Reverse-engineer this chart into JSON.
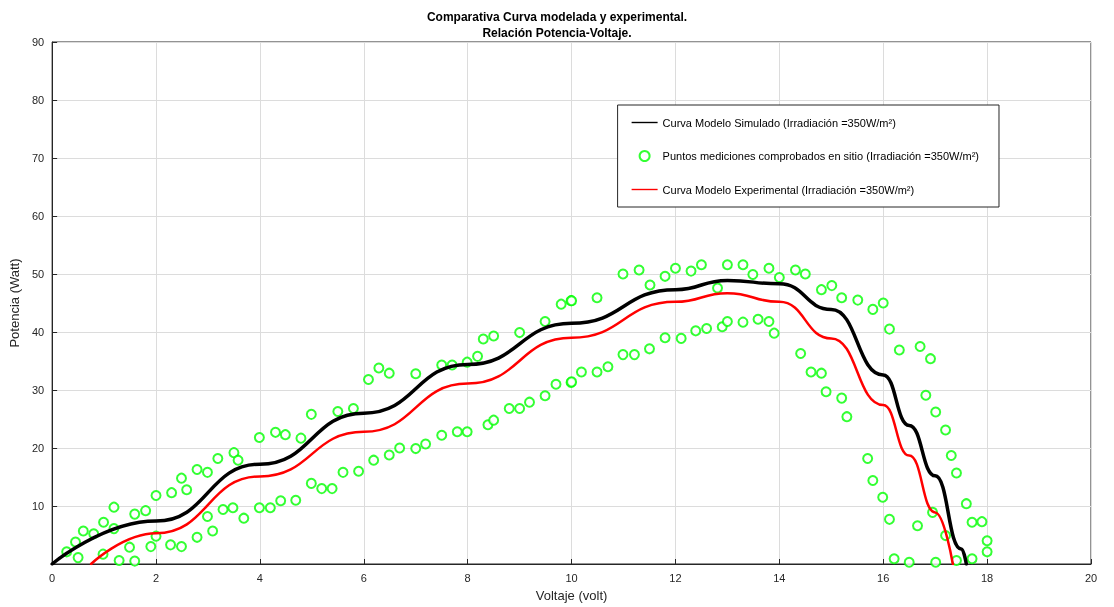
{
  "chart_data": {
    "type": "line",
    "title": "Comparativa Curva modelada y experimental.\nRelación Potencia-Voltaje.",
    "xlabel": "Voltaje (volt)",
    "ylabel": "Potencia (Watt)",
    "xlim": [
      0,
      20
    ],
    "xticks": [
      0,
      2,
      4,
      6,
      8,
      10,
      12,
      14,
      16,
      18,
      20
    ],
    "ylim": [
      0,
      90
    ],
    "yticks": [
      {
        "value": 0,
        "label": null
      },
      10,
      20,
      30,
      40,
      50,
      60,
      70,
      80,
      90
    ],
    "grid": true,
    "legend": "top right",
    "series": [
      {
        "name": "Curva Modelo Simulado (Irradiación =350W/m²)",
        "marker": "none",
        "line_style": "solid",
        "color": "#000000",
        "x": [
          0,
          2,
          4,
          6,
          8,
          10,
          12,
          13,
          14,
          15,
          16,
          16.5,
          17,
          17.5,
          17.6
        ],
        "values": [
          0,
          7.4,
          17.2,
          26,
          34.4,
          41.5,
          47.3,
          48.9,
          48.3,
          43.9,
          32.6,
          23.9,
          15.2,
          2.6,
          0
        ]
      },
      {
        "name": "Puntos mediciones comprobados en sitio (Irradiación =350W/m²)",
        "type": "scatter",
        "marker": "circle",
        "color": "#00ff00",
        "x": [
          0.28,
          0.6,
          0.45,
          0.5,
          0.8,
          0.99,
          1.19,
          1.19,
          1.29,
          0.98,
          1.59,
          1.59,
          1.49,
          1.8,
          2.0,
          1.9,
          2.0,
          2.3,
          2.28,
          2.49,
          2.49,
          2.59,
          2.79,
          2.79,
          2.99,
          2.99,
          3.09,
          3.19,
          3.29,
          3.5,
          3.48,
          3.69,
          3.58,
          3.99,
          3.99,
          4.3,
          4.2,
          4.49,
          4.4,
          4.69,
          4.79,
          4.99,
          4.99,
          5.19,
          5.39,
          5.5,
          5.6,
          5.8,
          5.9,
          6.09,
          6.29,
          6.19,
          6.49,
          6.49,
          6.69,
          7.0,
          7.0,
          7.19,
          7.5,
          7.5,
          7.7,
          7.8,
          7.99,
          7.99,
          8.19,
          8.3,
          8.39,
          8.5,
          8.5,
          8.8,
          9.0,
          9.0,
          9.19,
          9.49,
          9.49,
          9.7,
          9.8,
          9.99,
          9.99,
          10,
          10,
          10.19,
          10.49,
          10.49,
          10.7,
          10.99,
          10.99,
          11.3,
          11.21,
          11.51,
          11.5,
          11.8,
          11.8,
          12.0,
          12.11,
          12.3,
          12.39,
          12.5,
          12.6,
          12.81,
          12.9,
          13.0,
          13.0,
          13.3,
          13.3,
          13.49,
          13.59,
          13.8,
          13.8,
          14.0,
          13.9,
          14.31,
          14.41,
          14.5,
          14.61,
          14.81,
          14.81,
          15.01,
          14.9,
          15.2,
          15.2,
          15.51,
          15.3,
          15.8,
          15.7,
          16.0,
          15.8,
          16.12,
          15.99,
          16.31,
          16.12,
          16.71,
          16.21,
          16.91,
          16.5,
          16.82,
          16.66,
          17.01,
          17.01,
          17.2,
          16.95,
          17.31,
          17.2,
          17.41,
          17.41,
          17.6,
          17.71,
          17.9,
          18.0,
          18.0,
          17.71
        ],
        "values": [
          2.1,
          5.7,
          3.8,
          1.1,
          5.2,
          7.2,
          9.8,
          6.1,
          0.6,
          1.7,
          8.6,
          0.5,
          2.9,
          9.2,
          11.8,
          3.0,
          4.8,
          12.3,
          3.3,
          14.8,
          3.0,
          12.8,
          16.3,
          4.6,
          15.8,
          8.2,
          5.7,
          18.2,
          9.4,
          19.2,
          9.7,
          7.9,
          17.9,
          21.8,
          9.7,
          22.7,
          9.7,
          22.3,
          10.9,
          11.0,
          21.7,
          25.8,
          13.9,
          13.0,
          13.0,
          26.3,
          15.8,
          26.8,
          16.0,
          31.8,
          33.8,
          17.9,
          32.9,
          18.8,
          20.0,
          32.8,
          19.9,
          20.7,
          34.3,
          22.2,
          34.3,
          22.8,
          34.8,
          22.8,
          35.8,
          38.8,
          24.0,
          39.3,
          24.8,
          26.8,
          39.9,
          26.8,
          27.9,
          41.8,
          29.0,
          31.0,
          44.8,
          45.4,
          31.3,
          45.4,
          31.4,
          33.1,
          45.9,
          33.1,
          34.0,
          50.0,
          36.1,
          50.7,
          36.1,
          48.1,
          37.1,
          49.6,
          39.0,
          51.0,
          38.9,
          50.5,
          40.2,
          51.6,
          40.6,
          47.6,
          40.9,
          51.6,
          41.8,
          51.6,
          41.7,
          49.9,
          42.2,
          51.0,
          41.8,
          49.4,
          39.8,
          50.7,
          36.3,
          50.0,
          33.1,
          47.3,
          32.9,
          48.0,
          29.7,
          45.9,
          28.6,
          45.5,
          25.4,
          43.9,
          18.2,
          45.0,
          14.4,
          40.5,
          11.5,
          36.9,
          7.7,
          37.5,
          0.9,
          35.4,
          0.3,
          29.1,
          6.6,
          26.2,
          0.3,
          23.1,
          8.9,
          18.7,
          4.9,
          15.7,
          0.6,
          10.4,
          7.2,
          7.3,
          4.0,
          2.1,
          0.9
        ]
      },
      {
        "name": "Curva Modelo Experimental (Irradiación =350W/m²)",
        "marker": "none",
        "line_style": "solid",
        "color": "#ff0000",
        "x": [
          0.75,
          2,
          4,
          6,
          8,
          10,
          12,
          13,
          14,
          15,
          16,
          16.5,
          17,
          17.34
        ],
        "values": [
          0,
          5.3,
          15.1,
          22.8,
          31.1,
          39,
          45.2,
          46.7,
          45.2,
          38.9,
          27.4,
          18.7,
          8.9,
          0
        ]
      }
    ]
  }
}
